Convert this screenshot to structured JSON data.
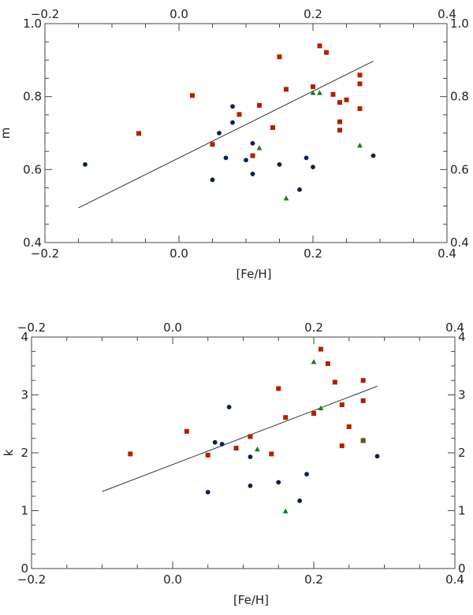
{
  "chart_data": [
    {
      "type": "scatter",
      "title": "",
      "xlabel": "[Fe/H]",
      "ylabel": "m",
      "xlim": [
        -0.2,
        0.4
      ],
      "ylim": [
        0.4,
        1.0
      ],
      "xticks": [
        -0.2,
        0.0,
        0.2,
        0.4
      ],
      "yticks": [
        0.4,
        0.6,
        0.8,
        1.0
      ],
      "xtick_labels": [
        "−0.2",
        "0.0",
        "0.2",
        "0.4"
      ],
      "ytick_labels": [
        "0.4",
        "0.6",
        "0.8",
        "1.0"
      ],
      "top_xtick_labels": [
        "−0.2",
        "0.0",
        "0.2",
        "0.4"
      ],
      "right_ytick_labels": [
        "0.4",
        "0.6",
        "0.8",
        "1.0"
      ],
      "fit_line": {
        "x": [
          -0.15,
          0.29
        ],
        "y": [
          0.495,
          0.897
        ]
      },
      "series": [
        {
          "name": "circles",
          "marker": "circle",
          "color": "#0c1f4f",
          "points": [
            [
              -0.14,
              0.614
            ],
            [
              0.05,
              0.572
            ],
            [
              0.06,
              0.7
            ],
            [
              0.07,
              0.632
            ],
            [
              0.08,
              0.729
            ],
            [
              0.08,
              0.773
            ],
            [
              0.1,
              0.626
            ],
            [
              0.11,
              0.588
            ],
            [
              0.11,
              0.672
            ],
            [
              0.15,
              0.614
            ],
            [
              0.18,
              0.545
            ],
            [
              0.19,
              0.632
            ],
            [
              0.2,
              0.607
            ],
            [
              0.29,
              0.638
            ]
          ]
        },
        {
          "name": "squares",
          "marker": "square",
          "color": "#b22000",
          "points": [
            [
              -0.06,
              0.699
            ],
            [
              0.02,
              0.803
            ],
            [
              0.05,
              0.669
            ],
            [
              0.09,
              0.751
            ],
            [
              0.11,
              0.638
            ],
            [
              0.12,
              0.776
            ],
            [
              0.14,
              0.715
            ],
            [
              0.15,
              0.909
            ],
            [
              0.16,
              0.82
            ],
            [
              0.2,
              0.827
            ],
            [
              0.21,
              0.939
            ],
            [
              0.22,
              0.921
            ],
            [
              0.23,
              0.806
            ],
            [
              0.24,
              0.784
            ],
            [
              0.24,
              0.731
            ],
            [
              0.24,
              0.708
            ],
            [
              0.25,
              0.791
            ],
            [
              0.27,
              0.859
            ],
            [
              0.27,
              0.835
            ],
            [
              0.27,
              0.767
            ]
          ]
        },
        {
          "name": "triangles",
          "marker": "triangle",
          "color": "#1a7a1a",
          "points": [
            [
              0.12,
              0.659
            ],
            [
              0.16,
              0.521
            ],
            [
              0.2,
              0.81
            ],
            [
              0.21,
              0.81
            ],
            [
              0.27,
              0.666
            ]
          ]
        }
      ]
    },
    {
      "type": "scatter",
      "title": "",
      "xlabel": "[Fe/H]",
      "ylabel": "k",
      "xlim": [
        -0.2,
        0.4
      ],
      "ylim": [
        0,
        4
      ],
      "xticks": [
        -0.2,
        0.0,
        0.2,
        0.4
      ],
      "yticks": [
        0,
        1,
        2,
        3,
        4
      ],
      "xtick_labels": [
        "−0.2",
        "0.0",
        "0.2",
        "0.4"
      ],
      "ytick_labels": [
        "0",
        "1",
        "2",
        "3",
        "4"
      ],
      "top_xtick_labels": [
        "−0.2",
        "0.0",
        "0.2",
        "0.4"
      ],
      "right_ytick_labels": [
        "0",
        "1",
        "2",
        "3",
        "4"
      ],
      "fit_line": {
        "x": [
          -0.1,
          0.29
        ],
        "y": [
          1.33,
          3.15
        ]
      },
      "series": [
        {
          "name": "circles",
          "marker": "circle",
          "color": "#0c1f4f",
          "points": [
            [
              0.05,
              1.32
            ],
            [
              0.06,
              2.18
            ],
            [
              0.07,
              2.15
            ],
            [
              0.08,
              2.79
            ],
            [
              0.11,
              1.43
            ],
            [
              0.11,
              1.93
            ],
            [
              0.15,
              1.49
            ],
            [
              0.18,
              1.17
            ],
            [
              0.19,
              1.63
            ],
            [
              0.29,
              1.94
            ]
          ]
        },
        {
          "name": "squares",
          "marker": "square",
          "color": "#b22000",
          "points": [
            [
              -0.06,
              1.98
            ],
            [
              0.02,
              2.37
            ],
            [
              0.05,
              1.96
            ],
            [
              0.09,
              2.08
            ],
            [
              0.11,
              2.28
            ],
            [
              0.14,
              1.98
            ],
            [
              0.15,
              3.11
            ],
            [
              0.16,
              2.61
            ],
            [
              0.2,
              2.68
            ],
            [
              0.21,
              3.79
            ],
            [
              0.22,
              3.54
            ],
            [
              0.23,
              3.22
            ],
            [
              0.24,
              2.12
            ],
            [
              0.24,
              2.83
            ],
            [
              0.25,
              2.45
            ],
            [
              0.27,
              3.25
            ],
            [
              0.27,
              2.9
            ],
            [
              0.27,
              2.21
            ]
          ]
        },
        {
          "name": "triangles",
          "marker": "triangle",
          "color": "#1a7a1a",
          "points": [
            [
              0.12,
              2.06
            ],
            [
              0.16,
              0.99
            ],
            [
              0.2,
              3.57
            ],
            [
              0.21,
              2.77
            ],
            [
              0.27,
              2.22
            ]
          ]
        }
      ]
    }
  ]
}
